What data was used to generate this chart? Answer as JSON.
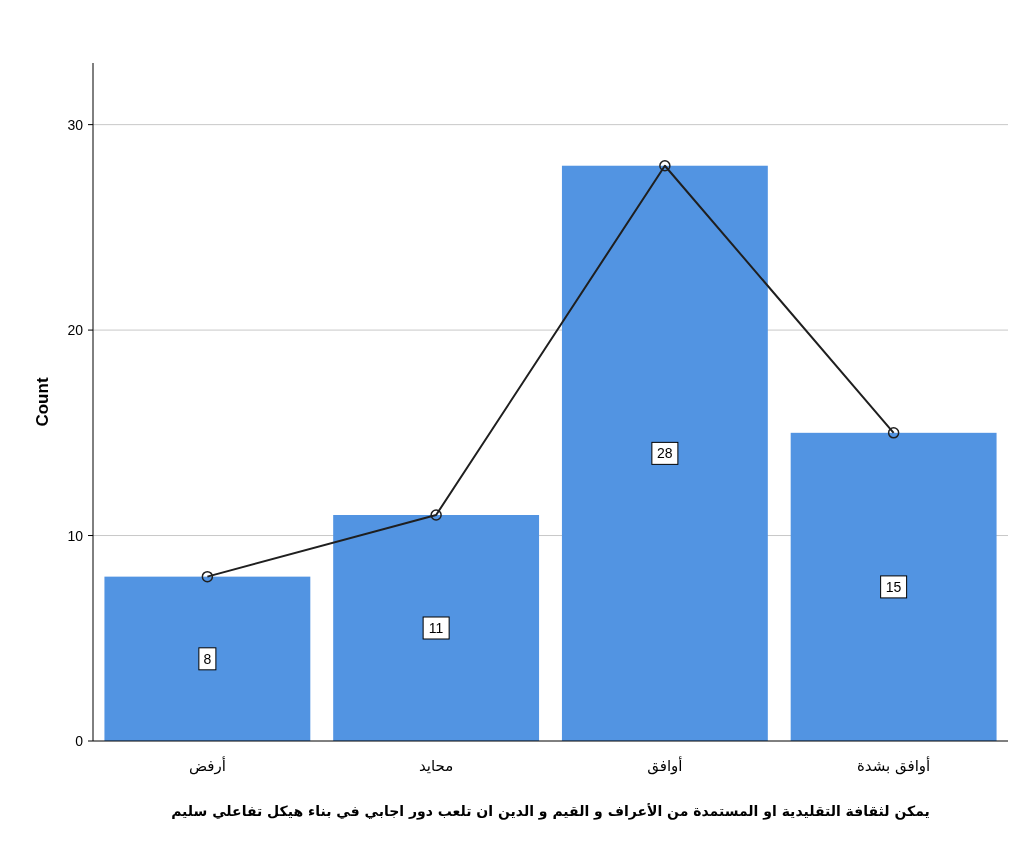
{
  "chart_data": {
    "type": "bar",
    "categories": [
      "أرفض",
      "محايد",
      "أوافق",
      "أوافق بشدة"
    ],
    "xlabel": "يمكن لثقافة التقليدية او المستمدة من الأعراف و القيم و الدين ان تلعب دور اجابي في بناء هيكل تفاعلي سليم",
    "ylabel": "Count",
    "series": [
      {
        "color": "#5294e2",
        "values": [
          8,
          11,
          28,
          15
        ],
        "value_labels": [
          "8",
          "11",
          "28",
          "15"
        ]
      },
      {
        "type": "line",
        "color": "#1f1f1f",
        "values": [
          8,
          11,
          28,
          15
        ],
        "marker": "circle"
      }
    ],
    "ylim": [
      0,
      33
    ],
    "yticks": [
      0,
      10,
      20,
      30
    ],
    "grid": "y"
  }
}
